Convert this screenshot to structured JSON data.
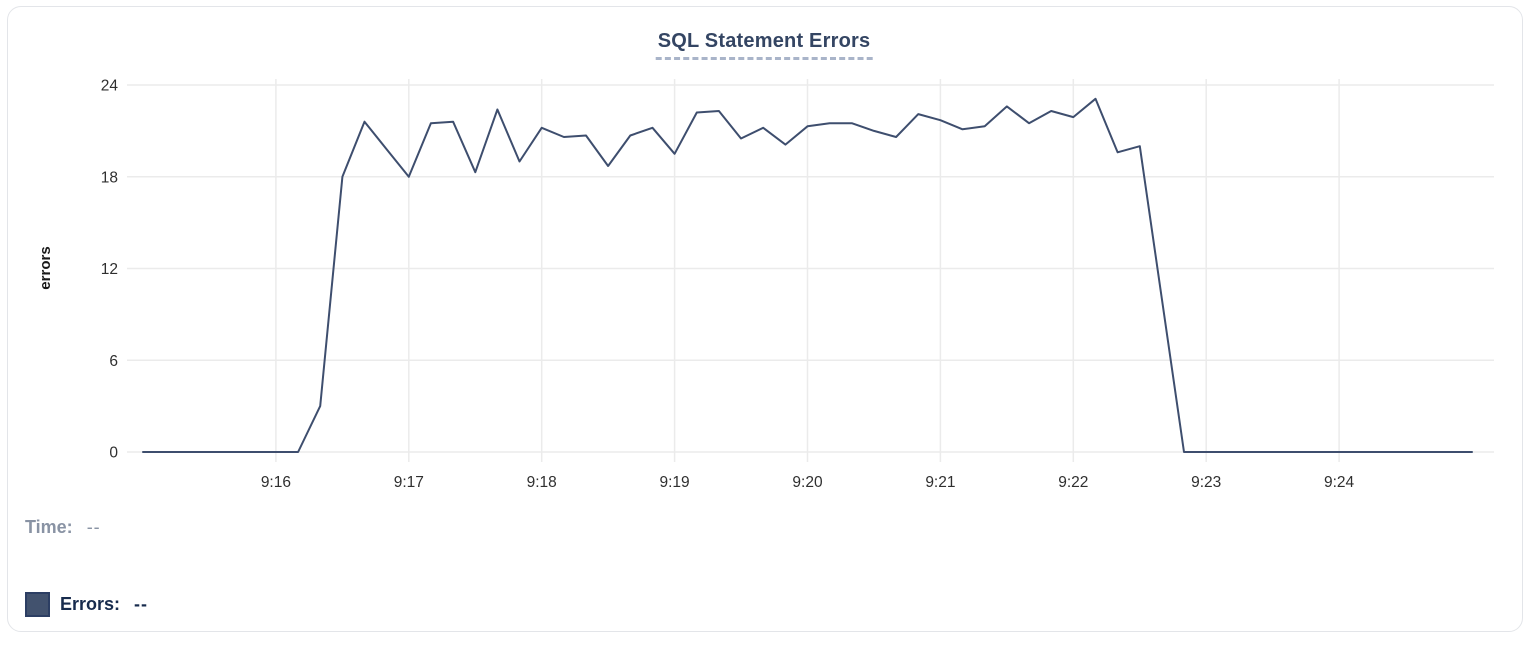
{
  "chart_data": {
    "type": "line",
    "title": "SQL Statement Errors",
    "xlabel": "",
    "ylabel": "errors",
    "ylim": [
      0,
      24
    ],
    "y_ticks": [
      0,
      6,
      12,
      18,
      24
    ],
    "x_ticks": [
      "9:16",
      "9:17",
      "9:18",
      "9:19",
      "9:20",
      "9:21",
      "9:22",
      "9:23",
      "9:24"
    ],
    "x_range": [
      "9:15:00",
      "9:25:00"
    ],
    "sample_interval_seconds": 10,
    "grid": true,
    "legend_position": "bottom-left",
    "series": [
      {
        "name": "Errors",
        "color": "#3e4e6e",
        "times": [
          "9:15:00",
          "9:15:10",
          "9:15:20",
          "9:15:30",
          "9:15:40",
          "9:15:50",
          "9:16:00",
          "9:16:10",
          "9:16:20",
          "9:16:30",
          "9:16:40",
          "9:16:50",
          "9:17:00",
          "9:17:10",
          "9:17:20",
          "9:17:30",
          "9:17:40",
          "9:17:50",
          "9:18:00",
          "9:18:10",
          "9:18:20",
          "9:18:30",
          "9:18:40",
          "9:18:50",
          "9:19:00",
          "9:19:10",
          "9:19:20",
          "9:19:30",
          "9:19:40",
          "9:19:50",
          "9:20:00",
          "9:20:10",
          "9:20:20",
          "9:20:30",
          "9:20:40",
          "9:20:50",
          "9:21:00",
          "9:21:10",
          "9:21:20",
          "9:21:30",
          "9:21:40",
          "9:21:50",
          "9:22:00",
          "9:22:10",
          "9:22:20",
          "9:22:30",
          "9:22:40",
          "9:22:50",
          "9:23:00",
          "9:23:10",
          "9:23:20",
          "9:23:30",
          "9:23:40",
          "9:23:50",
          "9:24:00",
          "9:24:10",
          "9:24:20",
          "9:24:30",
          "9:24:40",
          "9:24:50",
          "9:25:00"
        ],
        "values": [
          0,
          0,
          0,
          0,
          0,
          0,
          0,
          0,
          3,
          18,
          21.6,
          19.8,
          18,
          21.5,
          21.6,
          18.3,
          22.4,
          19,
          21.2,
          20.6,
          20.7,
          18.7,
          20.7,
          21.2,
          19.5,
          22.2,
          22.3,
          20.5,
          21.2,
          20.1,
          21.3,
          21.5,
          21.5,
          21,
          20.6,
          22.1,
          21.7,
          21.1,
          21.3,
          22.6,
          21.5,
          22.3,
          21.9,
          23.1,
          19.6,
          20,
          10,
          0,
          0,
          0,
          0,
          0,
          0,
          0,
          0,
          0,
          0,
          0,
          0,
          0,
          0
        ]
      }
    ]
  },
  "legend": {
    "time_label": "Time:",
    "time_value": "--",
    "errors_label": "Errors:",
    "errors_value": "--",
    "swatch_color": "#42526e"
  },
  "colors": {
    "line": "#3e4e6e",
    "title": "#344563",
    "title_underline": "#a9b4c9",
    "grid": "#ebebeb",
    "tick_text": "#2f2f2f",
    "card_border": "#e3e5e9",
    "legend_muted": "#8993a4",
    "legend_dark": "#172b4d"
  }
}
